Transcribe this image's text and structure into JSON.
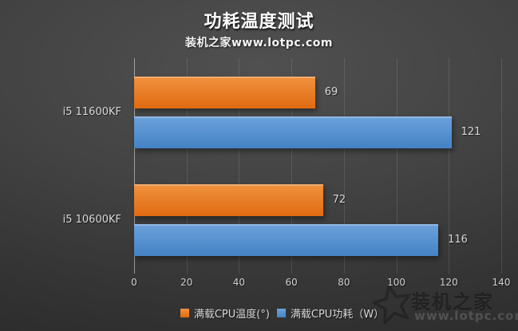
{
  "header": {
    "title": "功耗温度测试",
    "subtitle": "装机之家www.lotpc.com"
  },
  "watermark": {
    "brand": "装机之家",
    "url": "www.lotpc.com"
  },
  "colors": {
    "temperature_top": "#F0913F",
    "temperature_bottom": "#E06B10",
    "power_top": "#6CA2DC",
    "power_bottom": "#4482C4",
    "label_text": "#D8D8D8",
    "background_center": "#505050",
    "background_edge": "#2A2A2A"
  },
  "chart_data": {
    "type": "bar",
    "orientation": "horizontal",
    "title": "功耗温度测试",
    "subtitle": "装机之家www.lotpc.com",
    "categories": [
      "i5 11600KF",
      "i5 10600KF"
    ],
    "series": [
      {
        "name": "满载CPU温度(°)",
        "values": [
          69,
          72
        ],
        "color_top": "#F0913F",
        "color_bottom": "#E06B10"
      },
      {
        "name": "满载CPU功耗（W）",
        "values": [
          121,
          116
        ],
        "color_top": "#6CA2DC",
        "color_bottom": "#4482C4"
      }
    ],
    "xlim": [
      0,
      140
    ],
    "x_ticks": [
      0,
      20,
      40,
      60,
      80,
      100,
      120,
      140
    ],
    "grid": true,
    "value_labels": true,
    "legend_position": "bottom"
  }
}
